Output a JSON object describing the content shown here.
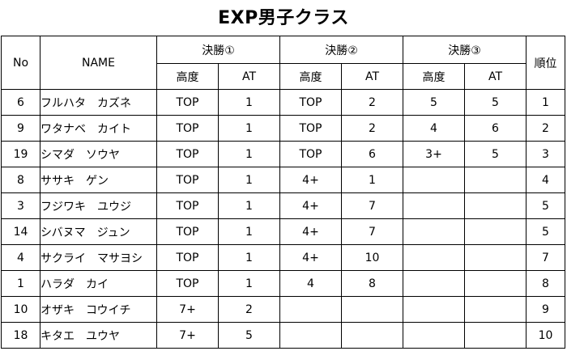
{
  "title": "EXP男子クラス",
  "headers": {
    "no": "No",
    "name": "NAME",
    "final1": "決勝①",
    "final2": "決勝②",
    "final3": "決勝③",
    "rank": "順位",
    "height": "高度",
    "at": "AT"
  },
  "rows": [
    {
      "no": "6",
      "name": "フルハタ　カズネ",
      "h1": "TOP",
      "a1": "1",
      "h2": "TOP",
      "a2": "2",
      "h3": "5",
      "a3": "5",
      "rank": "1"
    },
    {
      "no": "9",
      "name": "ワタナベ　カイト",
      "h1": "TOP",
      "a1": "1",
      "h2": "TOP",
      "a2": "2",
      "h3": "4",
      "a3": "6",
      "rank": "2"
    },
    {
      "no": "19",
      "name": "シマダ　ソウヤ",
      "h1": "TOP",
      "a1": "1",
      "h2": "TOP",
      "a2": "6",
      "h3": "3+",
      "a3": "5",
      "rank": "3"
    },
    {
      "no": "8",
      "name": "ササキ　ゲン",
      "h1": "TOP",
      "a1": "1",
      "h2": "4+",
      "a2": "1",
      "h3": "",
      "a3": "",
      "rank": "4"
    },
    {
      "no": "3",
      "name": "フジワキ　ユウジ",
      "h1": "TOP",
      "a1": "1",
      "h2": "4+",
      "a2": "7",
      "h3": "",
      "a3": "",
      "rank": "5"
    },
    {
      "no": "14",
      "name": "シバヌマ　ジュン",
      "h1": "TOP",
      "a1": "1",
      "h2": "4+",
      "a2": "7",
      "h3": "",
      "a3": "",
      "rank": "5"
    },
    {
      "no": "4",
      "name": "サクライ　マサヨシ",
      "h1": "TOP",
      "a1": "1",
      "h2": "4+",
      "a2": "10",
      "h3": "",
      "a3": "",
      "rank": "7"
    },
    {
      "no": "1",
      "name": "ハラダ　カイ",
      "h1": "TOP",
      "a1": "1",
      "h2": "4",
      "a2": "8",
      "h3": "",
      "a3": "",
      "rank": "8"
    },
    {
      "no": "10",
      "name": "オザキ　コウイチ",
      "h1": "7+",
      "a1": "2",
      "h2": "",
      "a2": "",
      "h3": "",
      "a3": "",
      "rank": "9"
    },
    {
      "no": "18",
      "name": "キタエ　ユウヤ",
      "h1": "7+",
      "a1": "5",
      "h2": "",
      "a2": "",
      "h3": "",
      "a3": "",
      "rank": "10"
    }
  ]
}
